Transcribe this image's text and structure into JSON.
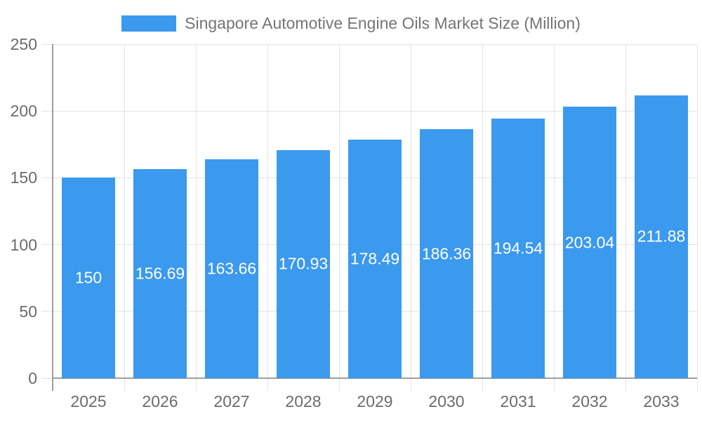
{
  "chart_data": {
    "type": "bar",
    "title": "Singapore Automotive Engine Oils Market Size (Million)",
    "legend": {
      "position": "top",
      "entries": [
        "Singapore Automotive Engine Oils Market Size (Million)"
      ]
    },
    "categories": [
      "2025",
      "2026",
      "2027",
      "2028",
      "2029",
      "2030",
      "2031",
      "2032",
      "2033"
    ],
    "values": [
      150,
      156.69,
      163.66,
      170.93,
      178.49,
      186.36,
      194.54,
      203.04,
      211.88
    ],
    "value_labels": [
      "150",
      "156.69",
      "163.66",
      "170.93",
      "178.49",
      "186.36",
      "194.54",
      "203.04",
      "211.88"
    ],
    "xlabel": "",
    "ylabel": "",
    "ylim": [
      0,
      250
    ],
    "yticks": [
      0,
      50,
      100,
      150,
      200,
      250
    ],
    "grid": true,
    "colors": {
      "bar": "#3b99ee",
      "bar_value_label": "#ffffff",
      "axis_text": "#6b6b6b",
      "title_text": "#757575",
      "gridline": "#e3e3e3",
      "axis_line": "#9e9e9e",
      "background": "#ffffff"
    }
  }
}
